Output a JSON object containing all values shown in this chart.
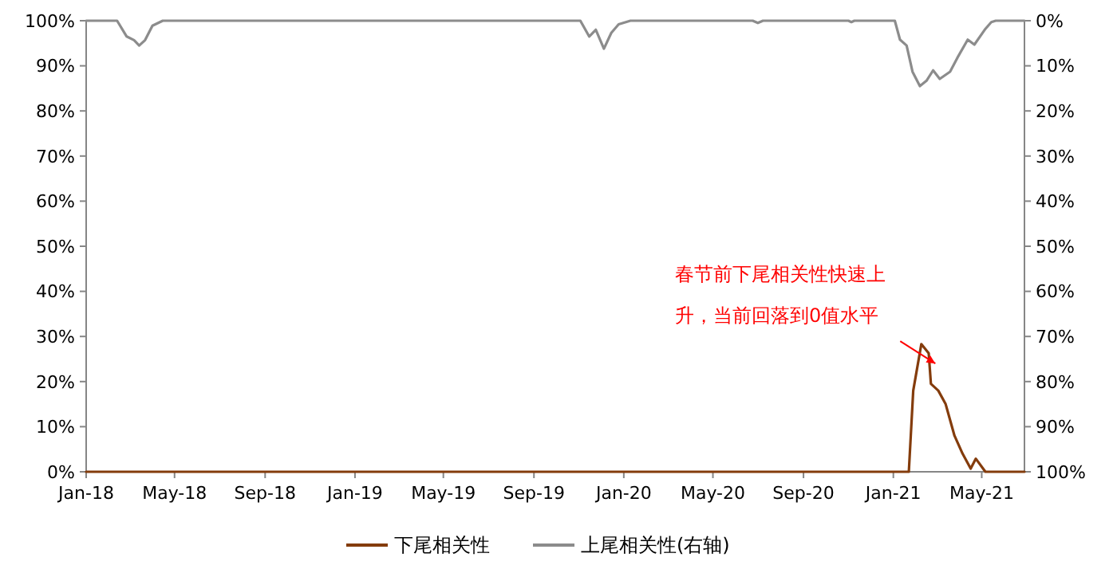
{
  "chart_data": {
    "type": "line",
    "xlim": [
      "2018-01-01",
      "2021-06-28"
    ],
    "xticks": [
      {
        "value": "2018-01-01",
        "label": "Jan-18"
      },
      {
        "value": "2018-05-01",
        "label": "May-18"
      },
      {
        "value": "2018-09-01",
        "label": "Sep-18"
      },
      {
        "value": "2019-01-01",
        "label": "Jan-19"
      },
      {
        "value": "2019-05-01",
        "label": "May-19"
      },
      {
        "value": "2019-09-01",
        "label": "Sep-19"
      },
      {
        "value": "2020-01-01",
        "label": "Jan-20"
      },
      {
        "value": "2020-05-01",
        "label": "May-20"
      },
      {
        "value": "2020-09-01",
        "label": "Sep-20"
      },
      {
        "value": "2021-01-01",
        "label": "Jan-21"
      },
      {
        "value": "2021-05-01",
        "label": "May-21"
      }
    ],
    "ylim": [
      0,
      100
    ],
    "yticks": [
      {
        "value": 0,
        "label": "0%"
      },
      {
        "value": 10,
        "label": "10%"
      },
      {
        "value": 20,
        "label": "20%"
      },
      {
        "value": 30,
        "label": "30%"
      },
      {
        "value": 40,
        "label": "40%"
      },
      {
        "value": 50,
        "label": "50%"
      },
      {
        "value": 60,
        "label": "60%"
      },
      {
        "value": 70,
        "label": "70%"
      },
      {
        "value": 80,
        "label": "80%"
      },
      {
        "value": 90,
        "label": "90%"
      },
      {
        "value": 100,
        "label": "100%"
      }
    ],
    "y2lim": [
      100,
      0
    ],
    "y2ticks": [
      {
        "value": 0,
        "label": "0%"
      },
      {
        "value": 10,
        "label": "10%"
      },
      {
        "value": 20,
        "label": "20%"
      },
      {
        "value": 30,
        "label": "30%"
      },
      {
        "value": 40,
        "label": "40%"
      },
      {
        "value": 50,
        "label": "50%"
      },
      {
        "value": 60,
        "label": "60%"
      },
      {
        "value": 70,
        "label": "70%"
      },
      {
        "value": 80,
        "label": "80%"
      },
      {
        "value": 90,
        "label": "90%"
      },
      {
        "value": 100,
        "label": "100%"
      }
    ],
    "grid": false,
    "legend": "bottom",
    "series": [
      {
        "name": "下尾相关性",
        "color": "#843c0c",
        "x": [
          "2018-01-01",
          "2021-01-06",
          "2021-01-22",
          "2021-01-28",
          "2021-02-08",
          "2021-02-18",
          "2021-02-21",
          "2021-03-03",
          "2021-03-13",
          "2021-03-25",
          "2021-04-05",
          "2021-04-16",
          "2021-04-23",
          "2021-05-06",
          "2021-06-28"
        ],
        "values": [
          0,
          0,
          0,
          18,
          28.3,
          26.3,
          19.5,
          18,
          15,
          8,
          4,
          0.7,
          2.9,
          0,
          0
        ]
      },
      {
        "name": "上尾相关性(右轴)",
        "color": "#8c8c8c",
        "axis": "y2",
        "x": [
          "2018-01-01",
          "2018-02-12",
          "2018-02-25",
          "2018-03-07",
          "2018-03-14",
          "2018-03-22",
          "2018-04-01",
          "2018-04-15",
          "2019-11-03",
          "2019-11-15",
          "2019-11-24",
          "2019-12-05",
          "2019-12-15",
          "2019-12-25",
          "2020-01-10",
          "2020-06-24",
          "2020-07-01",
          "2020-07-08",
          "2020-11-01",
          "2020-11-05",
          "2020-11-09",
          "2021-01-03",
          "2021-01-10",
          "2021-01-19",
          "2021-01-27",
          "2021-02-06",
          "2021-02-15",
          "2021-02-24",
          "2021-03-05",
          "2021-03-19",
          "2021-03-29",
          "2021-04-12",
          "2021-04-21",
          "2021-05-06",
          "2021-05-14",
          "2021-05-20",
          "2021-06-28"
        ],
        "values": [
          0,
          0,
          3.5,
          4.3,
          5.5,
          4.3,
          1.1,
          0,
          0,
          3.5,
          2.0,
          6.2,
          2.7,
          0.8,
          0,
          0,
          0.5,
          0,
          0,
          0.3,
          0,
          0,
          4.2,
          5.5,
          11.3,
          14.5,
          13.3,
          11.0,
          12.9,
          11.3,
          8.2,
          4.2,
          5.3,
          1.8,
          0.3,
          0,
          0
        ]
      }
    ],
    "annotations": [
      {
        "text": "春节前下尾相关性快速上升，当前回落到0值水平",
        "x": "2021-02-27",
        "y": 24
      }
    ]
  }
}
